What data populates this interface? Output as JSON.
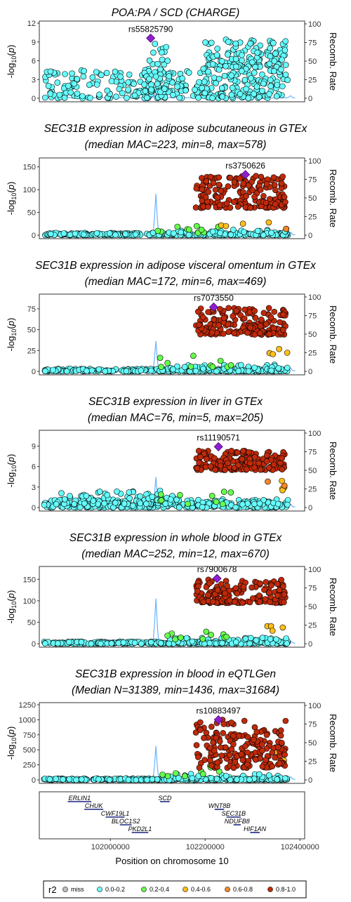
{
  "chart_data": [
    {
      "type": "scatter",
      "title": "POA:PA / SCD (CHARGE)",
      "subtitle": "",
      "ylabel": "-log10(p)",
      "y2label": "Recomb. Rate",
      "ylim": [
        0,
        12
      ],
      "yticks": [
        0,
        3,
        6,
        9,
        12
      ],
      "y2ticks": [
        0,
        25,
        50,
        75,
        100
      ],
      "lead_snp": "rs55825790",
      "lead": {
        "x": 102085000,
        "y": 9.6
      },
      "clusters": [
        {
          "r2": "0.0-0.2",
          "x0": 101860000,
          "x1": 102375000,
          "ymin": 0,
          "ymax": 4.5,
          "n": 260
        },
        {
          "r2": "0.0-0.2",
          "x0": 102070000,
          "x1": 102130000,
          "ymin": 1,
          "ymax": 9.3,
          "n": 60
        },
        {
          "r2": "0.0-0.2",
          "x0": 102200000,
          "x1": 102375000,
          "ymin": 5,
          "ymax": 9.4,
          "n": 120
        },
        {
          "r2": "0.0-0.2",
          "x0": 102130000,
          "x1": 102370000,
          "ymin": 0,
          "ymax": 5,
          "n": 60
        }
      ],
      "recomb_peaks": [
        {
          "x": 102096000,
          "rate": 5
        },
        {
          "x": 102380000,
          "rate": 3
        }
      ]
    },
    {
      "type": "scatter",
      "title": "SEC31B expression in adipose subcutaneous in GTEx",
      "subtitle": "(median MAC=223, min=8, max=578)",
      "ylabel": "-log10(p)",
      "y2label": "Recomb. Rate",
      "ylim": [
        0,
        165
      ],
      "yticks": [
        0,
        50,
        100,
        150
      ],
      "y2ticks": [
        0,
        25,
        50,
        75,
        100
      ],
      "lead_snp": "rs3750626",
      "lead": {
        "x": 102285000,
        "y": 133
      },
      "clusters": [
        {
          "r2": "0.0-0.2",
          "x0": 101860000,
          "x1": 102375000,
          "ymin": 0,
          "ymax": 5,
          "n": 300
        },
        {
          "r2": "0.0-0.2",
          "x0": 102120000,
          "x1": 102375000,
          "ymin": 0,
          "ymax": 12,
          "n": 60
        },
        {
          "r2": "0.2-0.4",
          "x0": 102100000,
          "x1": 102260000,
          "ymin": 5,
          "ymax": 20,
          "n": 10
        },
        {
          "r2": "0.4-0.6",
          "x0": 102220000,
          "x1": 102370000,
          "ymin": 15,
          "ymax": 28,
          "n": 4
        },
        {
          "r2": "0.6-0.8",
          "x0": 102360000,
          "x1": 102375000,
          "ymin": 3,
          "ymax": 20,
          "n": 2
        },
        {
          "r2": "0.8-1.0",
          "x0": 102180000,
          "x1": 102370000,
          "ymin": 60,
          "ymax": 130,
          "n": 170
        }
      ],
      "recomb_peaks": [
        {
          "x": 102096000,
          "rate": 55
        },
        {
          "x": 102380000,
          "rate": 4
        }
      ]
    },
    {
      "type": "scatter",
      "title": "SEC31B expression in adipose visceral omentum in GTEx",
      "subtitle": "(median MAC=172, min=6, max=469)",
      "ylabel": "-log10(p)",
      "y2label": "Recomb. Rate",
      "ylim": [
        0,
        90
      ],
      "yticks": [
        0,
        25,
        50,
        75
      ],
      "y2ticks": [
        0,
        25,
        50,
        75,
        100
      ],
      "lead_snp": "rs7073550",
      "lead": {
        "x": 102218000,
        "y": 77
      },
      "clusters": [
        {
          "r2": "0.0-0.2",
          "x0": 101860000,
          "x1": 102375000,
          "ymin": 0,
          "ymax": 3,
          "n": 300
        },
        {
          "r2": "0.0-0.2",
          "x0": 102120000,
          "x1": 102375000,
          "ymin": 0,
          "ymax": 8,
          "n": 60
        },
        {
          "r2": "0.2-0.4",
          "x0": 102100000,
          "x1": 102260000,
          "ymin": 5,
          "ymax": 21,
          "n": 10
        },
        {
          "r2": "0.4-0.6",
          "x0": 102330000,
          "x1": 102375000,
          "ymin": 20,
          "ymax": 28,
          "n": 4
        },
        {
          "r2": "0.8-1.0",
          "x0": 102180000,
          "x1": 102370000,
          "ymin": 44,
          "ymax": 76,
          "n": 170
        }
      ],
      "recomb_peaks": [
        {
          "x": 102096000,
          "rate": 40
        },
        {
          "x": 102380000,
          "rate": 4
        }
      ]
    },
    {
      "type": "scatter",
      "title": "SEC31B expression in liver in GTEx",
      "subtitle": "(median MAC=76, min=5, max=205)",
      "ylabel": "-log10(p)",
      "y2label": "Recomb. Rate",
      "ylim": [
        0,
        11
      ],
      "yticks": [
        0,
        3,
        6,
        9
      ],
      "y2ticks": [
        0,
        25,
        50,
        75,
        100
      ],
      "lead_snp": "rs11190571",
      "lead": {
        "x": 102228000,
        "y": 8.9
      },
      "clusters": [
        {
          "r2": "0.0-0.2",
          "x0": 101860000,
          "x1": 102375000,
          "ymin": 0,
          "ymax": 1.2,
          "n": 300
        },
        {
          "r2": "0.0-0.2",
          "x0": 101880000,
          "x1": 102140000,
          "ymin": 0.5,
          "ymax": 2.5,
          "n": 80
        },
        {
          "r2": "0.2-0.4",
          "x0": 102100000,
          "x1": 102260000,
          "ymin": 0.5,
          "ymax": 2.5,
          "n": 10
        },
        {
          "r2": "0.4-0.6",
          "x0": 102360000,
          "x1": 102375000,
          "ymin": 2.5,
          "ymax": 4.5,
          "n": 4
        },
        {
          "r2": "0.6-0.8",
          "x0": 102330000,
          "x1": 102370000,
          "ymin": 3,
          "ymax": 4,
          "n": 2
        },
        {
          "r2": "0.8-1.0",
          "x0": 102180000,
          "x1": 102370000,
          "ymin": 5.5,
          "ymax": 8.3,
          "n": 170
        }
      ],
      "recomb_peaks": [
        {
          "x": 102096000,
          "rate": 40
        },
        {
          "x": 102380000,
          "rate": 4
        }
      ]
    },
    {
      "type": "scatter",
      "title": "SEC31B expression in whole blood in GTEx",
      "subtitle": "(median MAC=252, min=12, max=670)",
      "ylabel": "-log10(p)",
      "y2label": "Recomb. Rate",
      "ylim": [
        0,
        175
      ],
      "yticks": [
        0,
        50,
        100,
        150
      ],
      "y2ticks": [
        0,
        25,
        50,
        75,
        100
      ],
      "lead_snp": "rs7900678",
      "lead": {
        "x": 102225000,
        "y": 152
      },
      "clusters": [
        {
          "r2": "0.0-0.2",
          "x0": 101860000,
          "x1": 102375000,
          "ymin": 0,
          "ymax": 5,
          "n": 300
        },
        {
          "r2": "0.0-0.2",
          "x0": 102120000,
          "x1": 102375000,
          "ymin": 0,
          "ymax": 14,
          "n": 60
        },
        {
          "r2": "0.2-0.4",
          "x0": 102100000,
          "x1": 102260000,
          "ymin": 10,
          "ymax": 38,
          "n": 10
        },
        {
          "r2": "0.4-0.6",
          "x0": 102330000,
          "x1": 102375000,
          "ymin": 30,
          "ymax": 42,
          "n": 4
        },
        {
          "r2": "0.8-1.0",
          "x0": 102180000,
          "x1": 102370000,
          "ymin": 95,
          "ymax": 150,
          "n": 170
        }
      ],
      "recomb_peaks": [
        {
          "x": 102096000,
          "rate": 60
        },
        {
          "x": 102380000,
          "rate": 4
        }
      ]
    },
    {
      "type": "scatter",
      "title": "SEC31B expression in blood in eQTLGen",
      "subtitle": "(Median N=31389, min=1436, max=31684)",
      "ylabel": "-log10(p)",
      "y2label": "Recomb. Rate",
      "ylim": [
        0,
        1250
      ],
      "yticks": [
        0,
        250,
        500,
        750,
        1000,
        1250
      ],
      "y2ticks": [
        0,
        25,
        50,
        75,
        100
      ],
      "lead_snp": "rs10883497",
      "lead": {
        "x": 102228000,
        "y": 1000
      },
      "clusters": [
        {
          "r2": "0.0-0.2",
          "x0": 101860000,
          "x1": 102375000,
          "ymin": 0,
          "ymax": 25,
          "n": 300
        },
        {
          "r2": "0.0-0.2",
          "x0": 102120000,
          "x1": 102375000,
          "ymin": 0,
          "ymax": 100,
          "n": 60
        },
        {
          "r2": "0.2-0.4",
          "x0": 102100000,
          "x1": 102260000,
          "ymin": 60,
          "ymax": 250,
          "n": 10
        },
        {
          "r2": "0.4-0.6",
          "x0": 102350000,
          "x1": 102375000,
          "ymin": 300,
          "ymax": 520,
          "n": 4
        },
        {
          "r2": "0.8-1.0",
          "x0": 102180000,
          "x1": 102370000,
          "ymin": 200,
          "ymax": 1000,
          "n": 180
        }
      ],
      "recomb_peaks": [
        {
          "x": 102096000,
          "rate": 45
        },
        {
          "x": 102380000,
          "rate": 4
        }
      ]
    }
  ],
  "xaxis": {
    "label": "Position on chromosome 10",
    "xlim": [
      101850000,
      102410000
    ],
    "ticks": [
      102000000,
      102200000,
      102400000
    ]
  },
  "genes": [
    {
      "name": "ERLIN1",
      "start": 101910000,
      "end": 101960000,
      "row": 0
    },
    {
      "name": "SCD",
      "start": 102105000,
      "end": 102125000,
      "row": 0
    },
    {
      "name": "CHUK",
      "start": 101945000,
      "end": 101985000,
      "row": 1
    },
    {
      "name": "WNT8B",
      "start": 102220000,
      "end": 102240000,
      "row": 1
    },
    {
      "name": "CWF19L1",
      "start": 101990000,
      "end": 102030000,
      "row": 2
    },
    {
      "name": "SEC31B",
      "start": 102245000,
      "end": 102275000,
      "row": 2
    },
    {
      "name": "BLOC1S2",
      "start": 102020000,
      "end": 102045000,
      "row": 3
    },
    {
      "name": "NDUFB8",
      "start": 102260000,
      "end": 102275000,
      "row": 3
    },
    {
      "name": "PKD2L1",
      "start": 102045000,
      "end": 102080000,
      "row": 4
    },
    {
      "name": "HIF1AN",
      "start": 102295000,
      "end": 102315000,
      "row": 4
    }
  ],
  "legend": {
    "title": "r2",
    "items": [
      {
        "label": "miss",
        "color": "#c0c0c0"
      },
      {
        "label": "0.0-0.2",
        "color": "#66ffff"
      },
      {
        "label": "0.2-0.4",
        "color": "#66ff4d"
      },
      {
        "label": "0.4-0.6",
        "color": "#ffbf1a"
      },
      {
        "label": "0.6-0.8",
        "color": "#f78826"
      },
      {
        "label": "0.8-1.0",
        "color": "#bf2a0b"
      }
    ]
  },
  "colors": {
    "lead": "#8f1ecf",
    "recomb": "#4da6ff"
  }
}
